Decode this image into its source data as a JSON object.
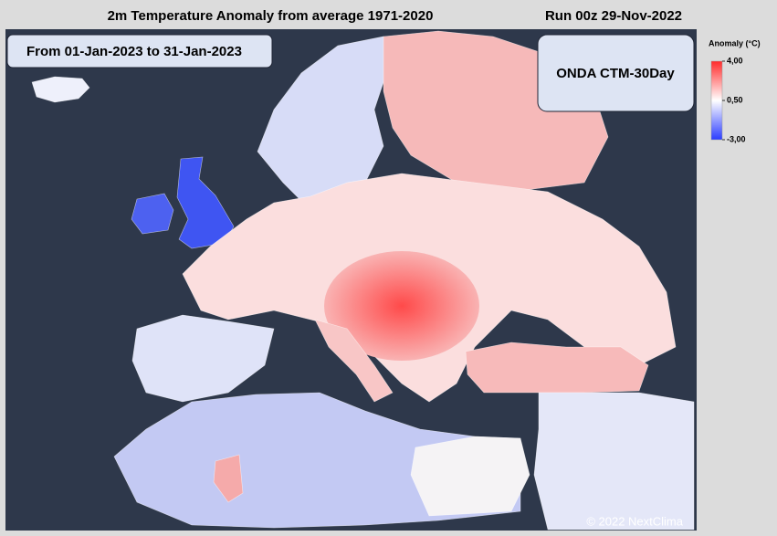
{
  "header": {
    "title": "2m Temperature Anomaly from average 1971-2020",
    "run": "Run 00z 29-Nov-2022"
  },
  "period": "From 01-Jan-2023 to 31-Jan-2023",
  "model": "ONDA CTM-30Day",
  "legend": {
    "title": "Anomaly (°C)",
    "ticks": [
      {
        "value": 4,
        "label": "4,00"
      },
      {
        "value": 0.5,
        "label": "0,50"
      },
      {
        "value": -3,
        "label": "-3,00"
      }
    ],
    "colors": [
      "#ff2a2a",
      "#ffffff",
      "#2a3cff"
    ]
  },
  "credit": "© 2022 NextClima"
}
